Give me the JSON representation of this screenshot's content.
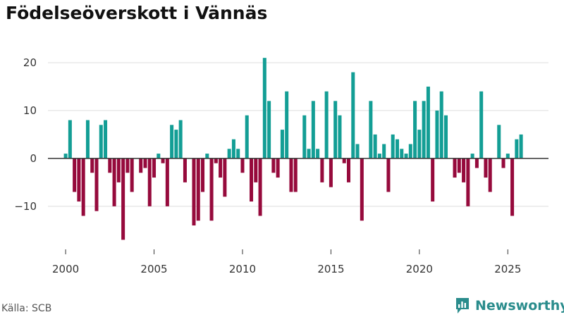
{
  "chart_data": {
    "type": "bar",
    "title": "Födelseöverskott i Vännäs",
    "x_ticks": [
      2000,
      2005,
      2010,
      2015,
      2020,
      2025
    ],
    "y_ticks": [
      -10,
      0,
      10,
      20
    ],
    "xlim": [
      1999.0,
      2027.3
    ],
    "ylim": [
      -19,
      25
    ],
    "series": [
      {
        "x": [
          2000.0,
          2000.25,
          2000.5,
          2000.75,
          2001.0,
          2001.25,
          2001.5,
          2001.75,
          2002.0,
          2002.25,
          2002.5,
          2002.75,
          2003.0,
          2003.25,
          2003.5,
          2003.75,
          2004.0,
          2004.25,
          2004.5,
          2004.75,
          2005.0,
          2005.25,
          2005.5,
          2005.75,
          2006.0,
          2006.25,
          2006.5,
          2006.75,
          2007.0,
          2007.25,
          2007.5,
          2007.75,
          2008.0,
          2008.25,
          2008.5,
          2008.75,
          2009.0,
          2009.25,
          2009.5,
          2009.75,
          2010.0,
          2010.25,
          2010.5,
          2010.75,
          2011.0,
          2011.25,
          2011.5,
          2011.75,
          2012.0,
          2012.25,
          2012.5,
          2012.75,
          2013.0,
          2013.25,
          2013.5,
          2013.75,
          2014.0,
          2014.25,
          2014.5,
          2014.75,
          2015.0,
          2015.25,
          2015.5,
          2015.75,
          2016.0,
          2016.25,
          2016.5,
          2016.75,
          2017.0,
          2017.25,
          2017.5,
          2017.75,
          2018.0,
          2018.25,
          2018.5,
          2018.75,
          2019.0,
          2019.25,
          2019.5,
          2019.75,
          2020.0,
          2020.25,
          2020.5,
          2020.75,
          2021.0,
          2021.25,
          2021.5,
          2021.75,
          2022.0,
          2022.25,
          2022.5,
          2022.75,
          2023.0,
          2023.25,
          2023.5,
          2023.75,
          2024.0,
          2024.25,
          2024.5,
          2024.75,
          2025.0,
          2025.25,
          2025.5,
          2025.75
        ],
        "values": [
          1,
          8,
          -7,
          -9,
          -12,
          8,
          -3,
          -11,
          7,
          8,
          -3,
          -10,
          -5,
          -17,
          -3,
          -7,
          0,
          -3,
          -2,
          -10,
          -4,
          1,
          -1,
          -10,
          7,
          6,
          8,
          -5,
          0,
          -14,
          -13,
          -7,
          1,
          -13,
          -1,
          -4,
          -8,
          2,
          4,
          2,
          -3,
          9,
          -9,
          -5,
          -12,
          21,
          12,
          -3,
          -4,
          6,
          14,
          -7,
          -7,
          0,
          9,
          2,
          12,
          2,
          -5,
          14,
          -6,
          12,
          9,
          -1,
          -5,
          18,
          3,
          -13,
          0,
          12,
          5,
          1,
          3,
          -7,
          5,
          4,
          2,
          1,
          3,
          12,
          6,
          12,
          15,
          -9,
          10,
          14,
          9,
          0,
          -4,
          -3,
          -5,
          -10,
          1,
          -2,
          14,
          -4,
          -7,
          0,
          7,
          -2,
          1,
          -12,
          4,
          5
        ]
      }
    ],
    "colors": {
      "positive": "#139e95",
      "negative": "#960a3c",
      "grid": "#dddddd",
      "zero_line": "#333333"
    }
  },
  "footer": {
    "source": "Källa: SCB",
    "brand": "Newsworthy"
  },
  "icons": {
    "brand": "newsworthy-chart-icon"
  }
}
